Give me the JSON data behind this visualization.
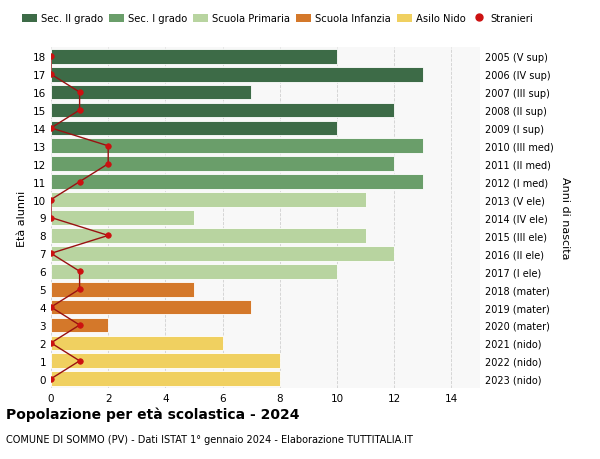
{
  "ages": [
    18,
    17,
    16,
    15,
    14,
    13,
    12,
    11,
    10,
    9,
    8,
    7,
    6,
    5,
    4,
    3,
    2,
    1,
    0
  ],
  "right_labels": [
    "2005 (V sup)",
    "2006 (IV sup)",
    "2007 (III sup)",
    "2008 (II sup)",
    "2009 (I sup)",
    "2010 (III med)",
    "2011 (II med)",
    "2012 (I med)",
    "2013 (V ele)",
    "2014 (IV ele)",
    "2015 (III ele)",
    "2016 (II ele)",
    "2017 (I ele)",
    "2018 (mater)",
    "2019 (mater)",
    "2020 (mater)",
    "2021 (nido)",
    "2022 (nido)",
    "2023 (nido)"
  ],
  "bar_values": [
    10,
    13,
    7,
    12,
    10,
    13,
    12,
    13,
    11,
    5,
    11,
    12,
    10,
    5,
    7,
    2,
    6,
    8,
    8
  ],
  "bar_colors": [
    "#3d6b47",
    "#3d6b47",
    "#3d6b47",
    "#3d6b47",
    "#3d6b47",
    "#6a9e6a",
    "#6a9e6a",
    "#6a9e6a",
    "#b8d4a0",
    "#b8d4a0",
    "#b8d4a0",
    "#b8d4a0",
    "#b8d4a0",
    "#d4782a",
    "#d4782a",
    "#d4782a",
    "#f0d060",
    "#f0d060",
    "#f0d060"
  ],
  "stranieri_values": [
    0,
    0,
    1,
    1,
    0,
    2,
    2,
    1,
    0,
    0,
    2,
    0,
    1,
    1,
    0,
    1,
    0,
    1,
    0
  ],
  "legend_labels": [
    "Sec. II grado",
    "Sec. I grado",
    "Scuola Primaria",
    "Scuola Infanzia",
    "Asilo Nido",
    "Stranieri"
  ],
  "legend_colors": [
    "#3d6b47",
    "#6a9e6a",
    "#b8d4a0",
    "#d4782a",
    "#f0d060",
    "#cc1111"
  ],
  "ylabel": "Età alunni",
  "right_ylabel": "Anni di nascita",
  "title": "Popolazione per età scolastica - 2024",
  "subtitle": "COMUNE DI SOMMO (PV) - Dati ISTAT 1° gennaio 2024 - Elaborazione TUTTITALIA.IT",
  "xlim": [
    0,
    15
  ],
  "ylim": [
    -0.5,
    18.5
  ],
  "xticks": [
    0,
    2,
    4,
    6,
    8,
    10,
    12,
    14
  ],
  "background_color": "#ffffff",
  "plot_bg_color": "#f8f8f8",
  "grid_color": "#d0d0d0"
}
